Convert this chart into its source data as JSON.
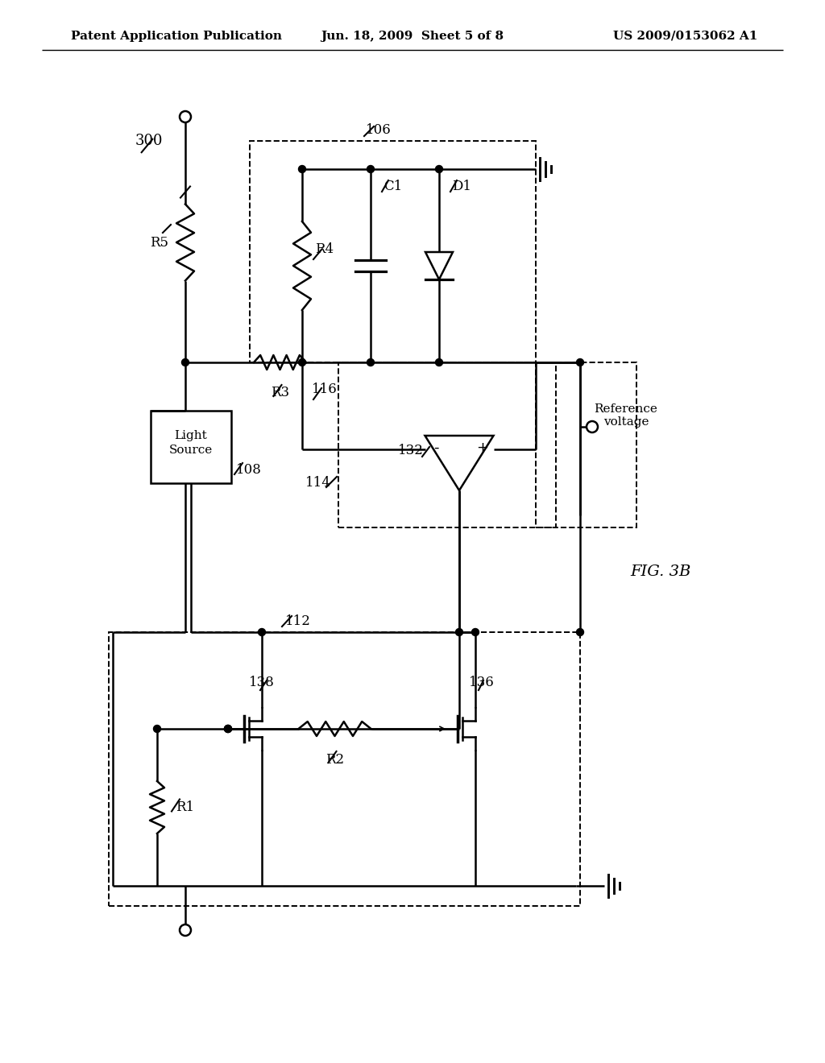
{
  "title_left": "Patent Application Publication",
  "title_mid": "Jun. 18, 2009  Sheet 5 of 8",
  "title_right": "US 2009/0153062 A1",
  "fig_label": "FIG. 3B",
  "background": "#ffffff"
}
